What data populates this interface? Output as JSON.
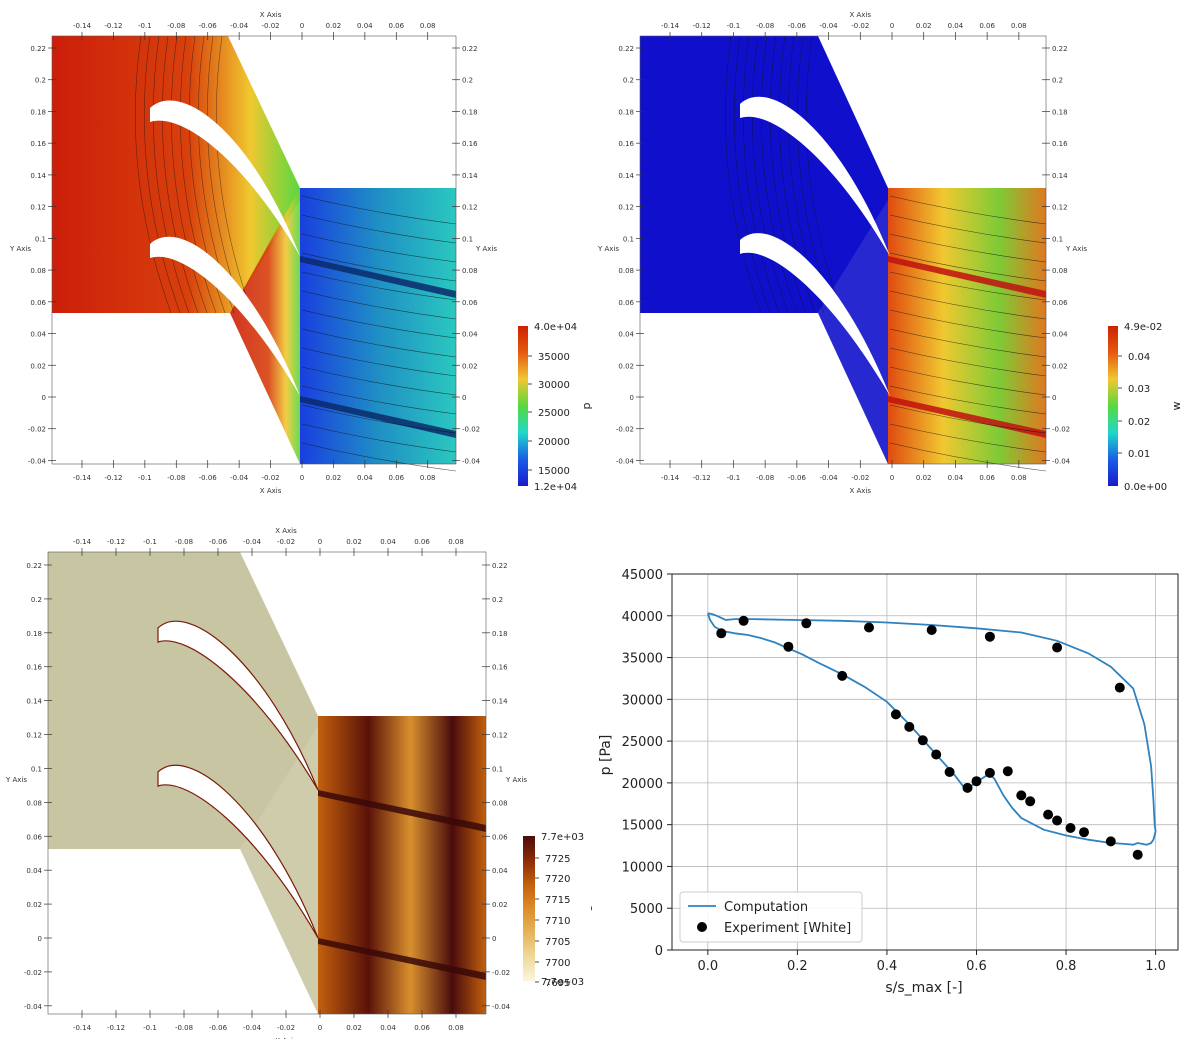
{
  "panels": [
    {
      "xlabel": "X Axis",
      "ylabel": "Y Axis",
      "colorbar": {
        "title": "p",
        "max_label": "4.0e+04",
        "min_label": "1.2e+04",
        "ticks": [
          "35000",
          "30000",
          "25000",
          "20000",
          "15000"
        ],
        "colors": [
          "#cc2200",
          "#e65a10",
          "#f0c830",
          "#58d840",
          "#20d8c8",
          "#1a5ee6",
          "#1a1acc"
        ]
      }
    },
    {
      "xlabel": "X Axis",
      "ylabel": "Y Axis",
      "colorbar": {
        "title": "w",
        "max_label": "4.9e-02",
        "min_label": "0.0e+00",
        "ticks": [
          "0.04",
          "0.03",
          "0.02",
          "0.01"
        ],
        "colors": [
          "#cc2200",
          "#e65a10",
          "#f0c830",
          "#58d840",
          "#20d8c8",
          "#1a5ee6",
          "#1a1acc"
        ]
      }
    },
    {
      "xlabel": "X Axis",
      "ylabel": "Y Axis",
      "colorbar": {
        "title": "s",
        "max_label": "7.7e+03",
        "min_label": "7.7e+03",
        "ticks": [
          "7725",
          "7720",
          "7715",
          "7710",
          "7705",
          "7700",
          "7695"
        ],
        "colors": [
          "#4a0c0c",
          "#8c2a08",
          "#c2600e",
          "#dc8c2a",
          "#e6b45a",
          "#efd99a",
          "#fbf6dc"
        ]
      }
    }
  ],
  "domain_axes": {
    "x_ticks": [
      "-0.14",
      "-0.12",
      "-0.1",
      "-0.08",
      "-0.06",
      "-0.04",
      "-0.02",
      "0",
      "0.02",
      "0.04",
      "0.06",
      "0.08"
    ],
    "y_ticks": [
      "0.22",
      "0.2",
      "0.18",
      "0.16",
      "0.14",
      "0.12",
      "0.1",
      "0.08",
      "0.06",
      "0.04",
      "0.02",
      "0",
      "-0.02",
      "-0.04"
    ]
  },
  "field_colors": {
    "pressure_inlet": "#cc1e0a",
    "pressure_outlet": "#1f8fc4",
    "velocity_inlet": "#1010cc",
    "velocity_outlet": "#7ecb36",
    "entropy_inlet": "#c8c6a2",
    "entropy_outlet": "#a8491a"
  },
  "chart_data": {
    "type": "line",
    "xlabel": "s/s_max [-]",
    "ylabel": "p [Pa]",
    "xlim": [
      -0.08,
      1.05
    ],
    "ylim": [
      0,
      45000
    ],
    "x_ticks": [
      "0.0",
      "0.2",
      "0.4",
      "0.6",
      "0.8",
      "1.0"
    ],
    "y_ticks": [
      "0",
      "5000",
      "10000",
      "15000",
      "20000",
      "25000",
      "30000",
      "35000",
      "40000",
      "45000"
    ],
    "grid": true,
    "legend_position": "lower-left",
    "series": [
      {
        "name": "Computation",
        "type": "line",
        "color": "#2e82c0",
        "x": [
          0.0,
          0.01,
          0.02,
          0.04,
          0.06,
          0.1,
          0.2,
          0.3,
          0.4,
          0.5,
          0.6,
          0.7,
          0.78,
          0.85,
          0.9,
          0.95,
          0.975,
          0.99,
          0.995,
          0.998,
          1.0,
          0.995,
          0.99,
          0.985,
          0.98,
          0.97,
          0.96,
          0.95,
          0.93,
          0.9,
          0.85,
          0.8,
          0.75,
          0.7,
          0.68,
          0.66,
          0.64,
          0.63,
          0.62,
          0.6,
          0.59,
          0.58,
          0.57,
          0.55,
          0.5,
          0.45,
          0.4,
          0.35,
          0.3,
          0.25,
          0.21,
          0.18,
          0.15,
          0.12,
          0.09,
          0.06,
          0.03,
          0.015,
          0.005,
          0.0
        ],
        "y": [
          40300,
          40200,
          40000,
          39500,
          39600,
          39600,
          39500,
          39400,
          39200,
          38900,
          38500,
          38000,
          37000,
          35500,
          33900,
          31300,
          27000,
          22000,
          18000,
          15000,
          14200,
          13200,
          12800,
          12700,
          12600,
          12700,
          12800,
          12600,
          12700,
          12800,
          13200,
          13700,
          14400,
          15800,
          17000,
          18500,
          20500,
          21000,
          20800,
          20100,
          19700,
          19300,
          19600,
          21000,
          24000,
          27000,
          29700,
          31500,
          33000,
          34300,
          35400,
          36100,
          36800,
          37300,
          37700,
          37900,
          38200,
          38700,
          39500,
          40300
        ]
      },
      {
        "name": "Experiment [White]",
        "type": "scatter",
        "color": "#000000",
        "x": [
          0.03,
          0.08,
          0.18,
          0.22,
          0.3,
          0.36,
          0.42,
          0.45,
          0.48,
          0.5,
          0.51,
          0.54,
          0.58,
          0.6,
          0.63,
          0.63,
          0.67,
          0.7,
          0.72,
          0.76,
          0.78,
          0.78,
          0.81,
          0.84,
          0.9,
          0.92,
          0.96
        ],
        "y": [
          37900,
          39400,
          36300,
          39100,
          32800,
          38600,
          28200,
          26700,
          25100,
          38300,
          23400,
          21300,
          19400,
          20200,
          21200,
          37500,
          21400,
          18500,
          17800,
          16200,
          15500,
          36200,
          14600,
          14100,
          13000,
          31400,
          11400
        ]
      }
    ]
  }
}
